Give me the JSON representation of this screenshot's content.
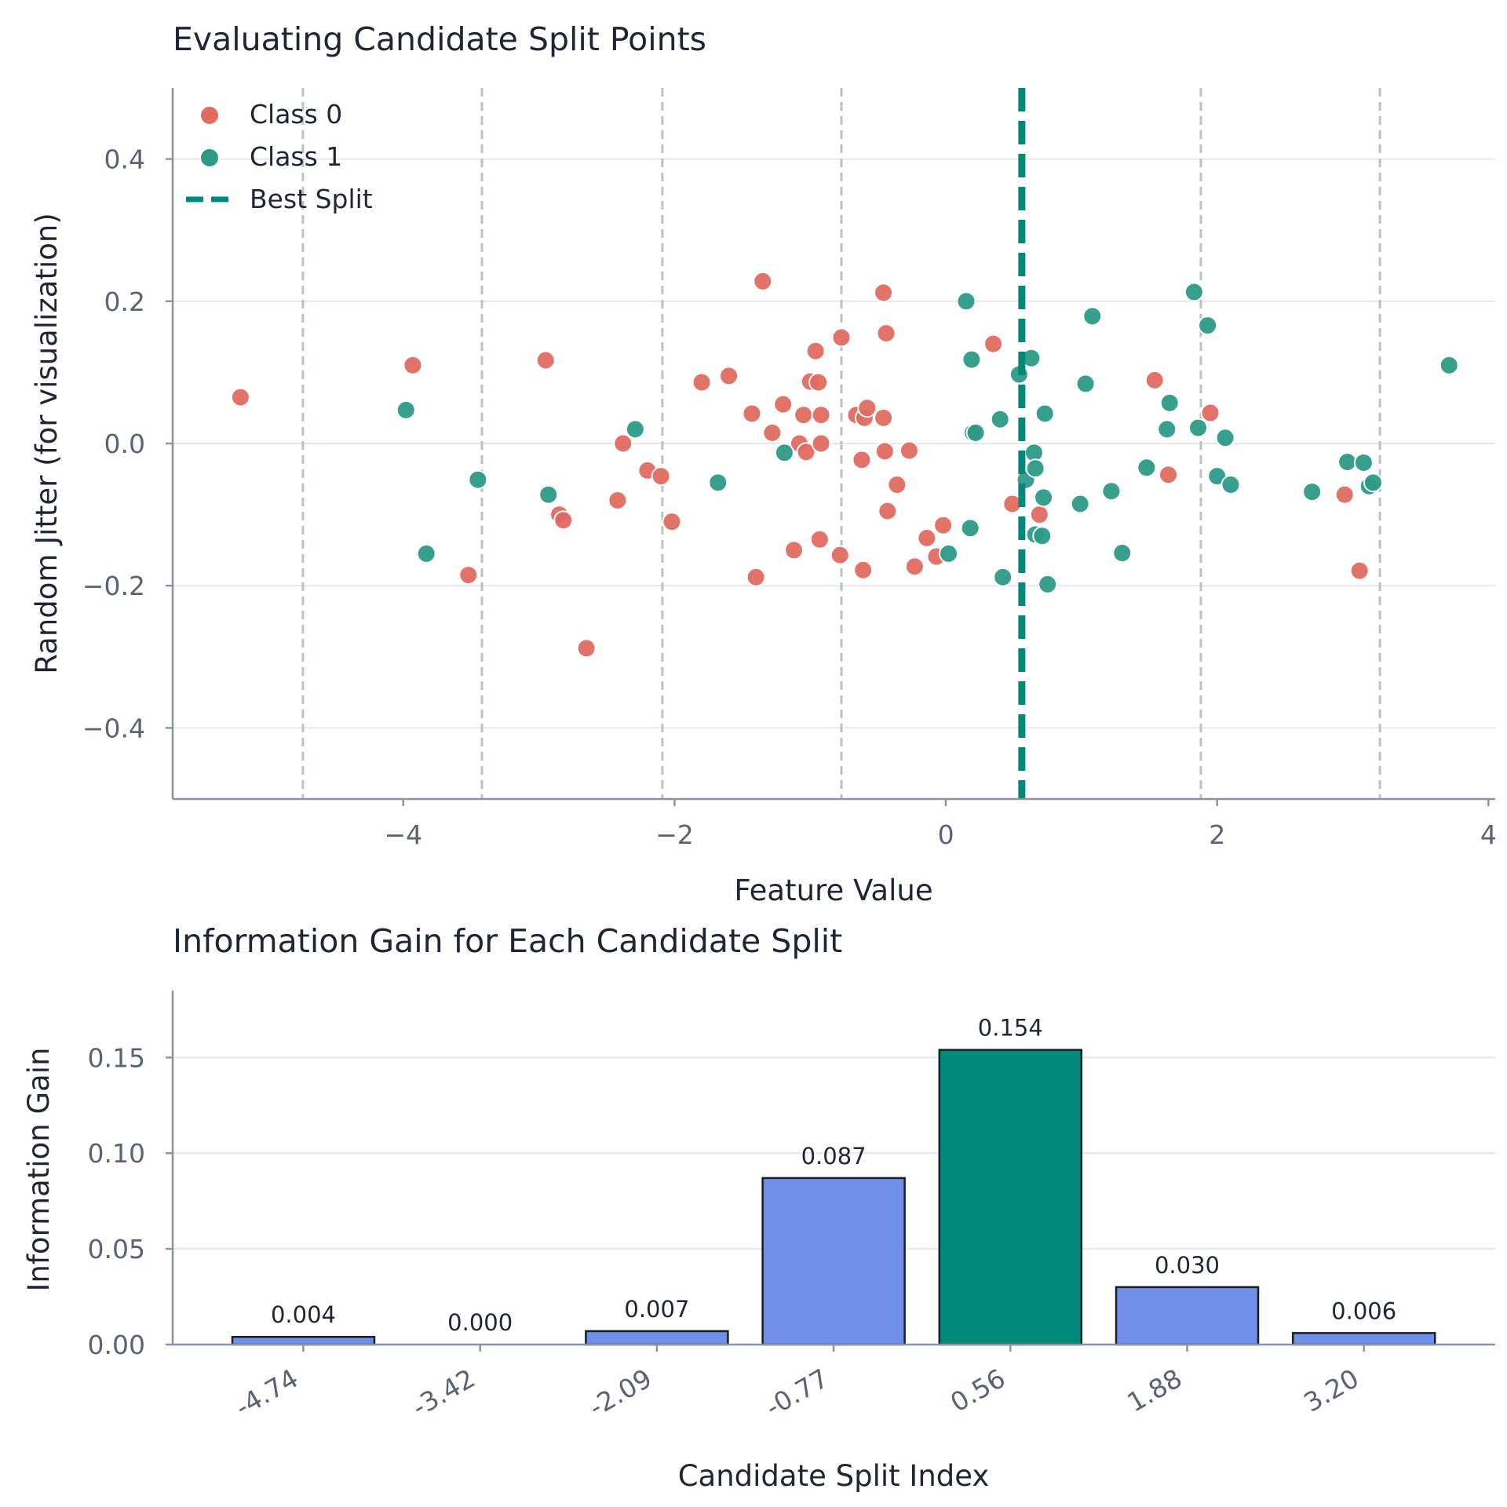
{
  "chart_data": [
    {
      "type": "scatter",
      "title": "Evaluating Candidate Split Points",
      "xlabel": "Feature Value",
      "ylabel": "Random Jitter (for visualization)",
      "xlim": [
        -5.7,
        4.05
      ],
      "ylim": [
        -0.5,
        0.5
      ],
      "x_ticks": [
        -4,
        -2,
        0,
        2,
        4
      ],
      "x_tick_labels": [
        "−4",
        "−2",
        "0",
        "2",
        "4"
      ],
      "y_ticks": [
        -0.4,
        -0.2,
        0.0,
        0.2,
        0.4
      ],
      "y_tick_labels": [
        "−0.4",
        "−0.2",
        "0.0",
        "0.2",
        "0.4"
      ],
      "grid": "horizontal",
      "legend": "top-left",
      "candidate_splits": [
        -4.74,
        -3.42,
        -2.09,
        -0.77,
        0.56,
        1.88,
        3.2
      ],
      "best_split": 0.56,
      "series": [
        {
          "name": "Class 0",
          "color": "#e06c61",
          "points": [
            [
              -5.2,
              0.065
            ],
            [
              -3.93,
              0.11
            ],
            [
              -3.52,
              -0.185
            ],
            [
              -2.95,
              0.117
            ],
            [
              -2.85,
              -0.1
            ],
            [
              -2.82,
              -0.108
            ],
            [
              -2.65,
              -0.288
            ],
            [
              -2.42,
              -0.08
            ],
            [
              -2.38,
              0.0
            ],
            [
              -2.2,
              -0.038
            ],
            [
              -2.1,
              -0.046
            ],
            [
              -2.02,
              -0.11
            ],
            [
              -1.8,
              0.086
            ],
            [
              -1.6,
              0.095
            ],
            [
              -1.43,
              0.042
            ],
            [
              -1.4,
              -0.188
            ],
            [
              -1.35,
              0.228
            ],
            [
              -1.28,
              0.015
            ],
            [
              -1.2,
              0.055
            ],
            [
              -1.12,
              -0.15
            ],
            [
              -1.08,
              0.0
            ],
            [
              -1.05,
              0.04
            ],
            [
              -1.03,
              -0.012
            ],
            [
              -1.0,
              0.087
            ],
            [
              -0.96,
              0.13
            ],
            [
              -0.94,
              0.086
            ],
            [
              -0.93,
              -0.135
            ],
            [
              -0.92,
              0.04
            ],
            [
              -0.92,
              0.0
            ],
            [
              -0.78,
              -0.157
            ],
            [
              -0.77,
              0.149
            ],
            [
              -0.66,
              0.04
            ],
            [
              -0.62,
              -0.023
            ],
            [
              -0.61,
              -0.178
            ],
            [
              -0.6,
              0.036
            ],
            [
              -0.58,
              0.05
            ],
            [
              -0.46,
              0.212
            ],
            [
              -0.46,
              0.036
            ],
            [
              -0.45,
              -0.011
            ],
            [
              -0.44,
              0.155
            ],
            [
              -0.43,
              -0.095
            ],
            [
              -0.36,
              -0.058
            ],
            [
              -0.27,
              -0.01
            ],
            [
              -0.23,
              -0.173
            ],
            [
              -0.14,
              -0.133
            ],
            [
              -0.07,
              -0.159
            ],
            [
              -0.02,
              -0.115
            ],
            [
              0.35,
              0.14
            ],
            [
              0.49,
              -0.085
            ],
            [
              0.69,
              -0.1
            ],
            [
              1.54,
              0.089
            ],
            [
              1.64,
              -0.044
            ],
            [
              1.95,
              0.043
            ],
            [
              2.94,
              -0.072
            ],
            [
              3.05,
              -0.179
            ]
          ]
        },
        {
          "name": "Class 1",
          "color": "#2e9a86",
          "points": [
            [
              -3.98,
              0.047
            ],
            [
              -3.83,
              -0.155
            ],
            [
              -3.45,
              -0.051
            ],
            [
              -2.93,
              -0.072
            ],
            [
              -2.29,
              0.02
            ],
            [
              -1.68,
              -0.055
            ],
            [
              -1.19,
              -0.013
            ],
            [
              0.02,
              -0.155
            ],
            [
              0.15,
              0.2
            ],
            [
              0.18,
              -0.119
            ],
            [
              0.19,
              0.118
            ],
            [
              0.2,
              0.015
            ],
            [
              0.22,
              0.015
            ],
            [
              0.4,
              0.034
            ],
            [
              0.42,
              -0.188
            ],
            [
              0.54,
              0.097
            ],
            [
              0.59,
              -0.051
            ],
            [
              0.63,
              0.12
            ],
            [
              0.65,
              -0.013
            ],
            [
              0.66,
              -0.035
            ],
            [
              0.66,
              -0.128
            ],
            [
              0.71,
              -0.13
            ],
            [
              0.72,
              -0.076
            ],
            [
              0.73,
              0.042
            ],
            [
              0.75,
              -0.198
            ],
            [
              0.99,
              -0.085
            ],
            [
              1.03,
              0.084
            ],
            [
              1.08,
              0.179
            ],
            [
              1.22,
              -0.067
            ],
            [
              1.3,
              -0.154
            ],
            [
              1.48,
              -0.034
            ],
            [
              1.63,
              0.02
            ],
            [
              1.65,
              0.057
            ],
            [
              1.83,
              0.213
            ],
            [
              1.86,
              0.022
            ],
            [
              1.93,
              0.166
            ],
            [
              2.0,
              -0.046
            ],
            [
              2.06,
              0.008
            ],
            [
              2.1,
              -0.058
            ],
            [
              2.7,
              -0.068
            ],
            [
              2.96,
              -0.026
            ],
            [
              3.08,
              -0.027
            ],
            [
              3.12,
              -0.06
            ],
            [
              3.15,
              -0.055
            ],
            [
              3.71,
              0.11
            ]
          ]
        }
      ],
      "best_split_label": "Best Split",
      "best_split_color": "#00897b"
    },
    {
      "type": "bar",
      "title": "Information Gain for Each Candidate Split",
      "xlabel": "Candidate Split Index",
      "ylabel": "Information Gain",
      "ylim": [
        0,
        0.185
      ],
      "y_ticks": [
        0.0,
        0.05,
        0.1,
        0.15
      ],
      "y_tick_labels": [
        "0.00",
        "0.05",
        "0.10",
        "0.15"
      ],
      "grid": "horizontal",
      "categories": [
        "-4.74",
        "-3.42",
        "-2.09",
        "-0.77",
        "0.56",
        "1.88",
        "3.20"
      ],
      "values": [
        0.004,
        0.0,
        0.007,
        0.087,
        0.154,
        0.03,
        0.006
      ],
      "value_labels": [
        "0.004",
        "0.000",
        "0.007",
        "0.087",
        "0.154",
        "0.030",
        "0.006"
      ],
      "highlight_index": 4,
      "bar_color": "#6f8fe8",
      "highlight_color": "#00897b"
    }
  ]
}
